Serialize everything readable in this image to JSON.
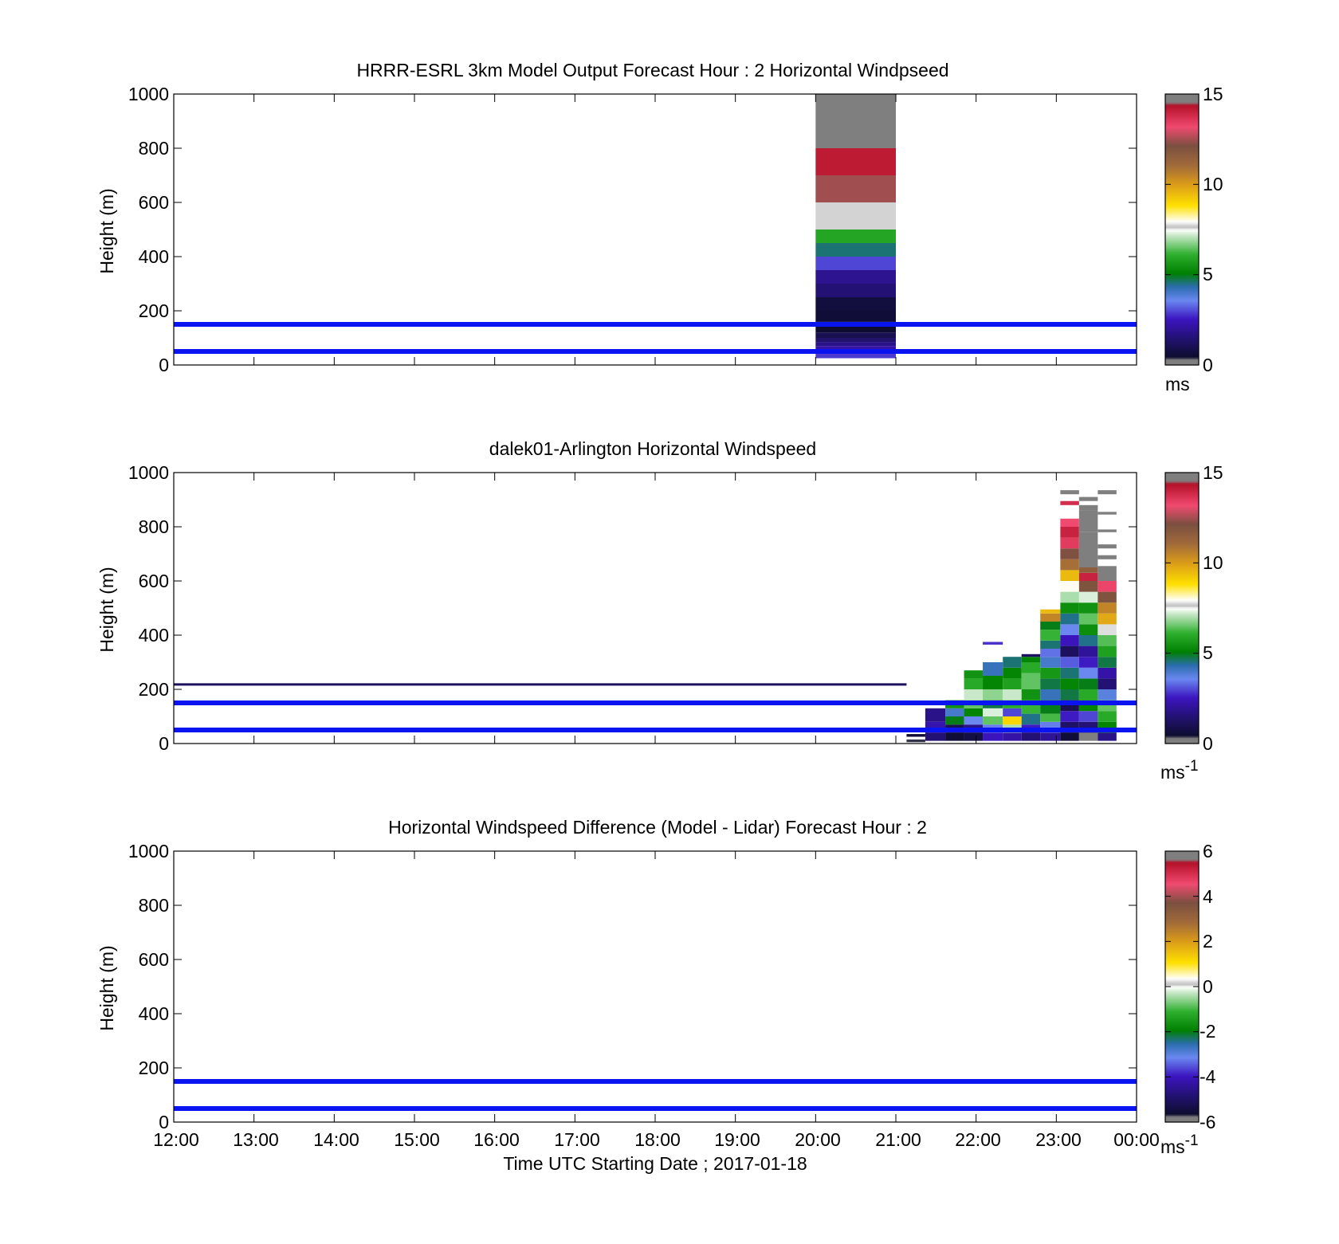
{
  "figure": {
    "xlabel": "Time UTC  Starting Date ; 2017-01-18",
    "x_ticks": [
      "12:00",
      "13:00",
      "14:00",
      "15:00",
      "16:00",
      "17:00",
      "18:00",
      "19:00",
      "20:00",
      "21:00",
      "22:00",
      "23:00",
      "00:00"
    ]
  },
  "colors": {
    "axis": "#000000",
    "reference_line": "#0a14f0",
    "colormap": [
      {
        "v": 0.0,
        "c": "#7f7f7f"
      },
      {
        "v": 0.02,
        "c": "#7f7f7f"
      },
      {
        "v": 0.03,
        "c": "#0d0d2e"
      },
      {
        "v": 0.1,
        "c": "#231273"
      },
      {
        "v": 0.17,
        "c": "#3c14c0"
      },
      {
        "v": 0.24,
        "c": "#6a88f0"
      },
      {
        "v": 0.29,
        "c": "#2a6dad"
      },
      {
        "v": 0.34,
        "c": "#008000"
      },
      {
        "v": 0.41,
        "c": "#2fb02f"
      },
      {
        "v": 0.48,
        "c": "#c9e8c9"
      },
      {
        "v": 0.5,
        "c": "#ffffff"
      },
      {
        "v": 0.51,
        "c": "#bdbdbd"
      },
      {
        "v": 0.53,
        "c": "#ffffff"
      },
      {
        "v": 0.59,
        "c": "#ffe000"
      },
      {
        "v": 0.67,
        "c": "#d99a1a"
      },
      {
        "v": 0.74,
        "c": "#a06a3a"
      },
      {
        "v": 0.81,
        "c": "#7a5040"
      },
      {
        "v": 0.88,
        "c": "#f04a70"
      },
      {
        "v": 0.96,
        "c": "#b31028"
      },
      {
        "v": 0.97,
        "c": "#7f7f7f"
      },
      {
        "v": 1.0,
        "c": "#7f7f7f"
      }
    ]
  },
  "chart_data": [
    {
      "type": "heatmap",
      "title": "HRRR-ESRL 3km Model Output   Forecast Hour : 2 Horizontal Windpseed",
      "ylabel": "Height (m)",
      "xlim": [
        "12:00",
        "00:00"
      ],
      "ylim": [
        0,
        1000
      ],
      "y_ticks": [
        "0",
        "200",
        "400",
        "600",
        "800",
        "1000"
      ],
      "colorbar": {
        "label": "ms",
        "superscript": "",
        "range": [
          0,
          15
        ],
        "ticks": [
          "0",
          "5",
          "10",
          "15"
        ]
      },
      "reference_lines_m": [
        50,
        150
      ],
      "columns": [
        {
          "t_start": "20:00",
          "t_end": "21:00",
          "cells": [
            [
              25,
              40,
              2.9
            ],
            [
              40,
              55,
              2.6
            ],
            [
              55,
              70,
              2.2
            ],
            [
              70,
              85,
              1.8
            ],
            [
              85,
              100,
              1.4
            ],
            [
              100,
              120,
              1.0
            ],
            [
              120,
              160,
              0.5
            ],
            [
              160,
              200,
              0.6
            ],
            [
              200,
              250,
              0.7
            ],
            [
              250,
              300,
              1.5
            ],
            [
              300,
              350,
              1.9
            ],
            [
              350,
              400,
              3.0
            ],
            [
              400,
              450,
              4.6
            ],
            [
              450,
              500,
              5.9
            ],
            [
              500,
              600,
              7.6
            ],
            [
              600,
              700,
              12.5
            ],
            [
              700,
              800,
              14.2
            ],
            [
              800,
              1000,
              15.5
            ]
          ]
        }
      ]
    },
    {
      "type": "heatmap",
      "title": "dalek01-Arlington  Horizontal Windspeed",
      "ylabel": "Height (m)",
      "xlim": [
        "12:00",
        "00:00"
      ],
      "ylim": [
        0,
        1000
      ],
      "y_ticks": [
        "0",
        "200",
        "400",
        "600",
        "800",
        "1000"
      ],
      "colorbar": {
        "label": "ms",
        "superscript": "-1",
        "range": [
          0,
          15
        ],
        "ticks": [
          "0",
          "5",
          "10",
          "15"
        ]
      },
      "reference_lines_m": [
        50,
        150
      ],
      "thin_segments": [
        {
          "t_start": "12:00",
          "t_end": "21:08",
          "y_m": 218,
          "value": 1.2
        }
      ],
      "columns": [
        {
          "t_start": "21:08",
          "t_end": "21:22",
          "cells": [
            [
              5,
              15,
              0.4
            ],
            [
              25,
              35,
              0.6
            ]
          ]
        },
        {
          "t_start": "21:22",
          "t_end": "21:37",
          "cells": [
            [
              10,
              40,
              1.5
            ],
            [
              40,
              80,
              2.3
            ],
            [
              80,
              130,
              1.8
            ]
          ]
        },
        {
          "t_start": "21:37",
          "t_end": "21:51",
          "cells": [
            [
              10,
              40,
              0.6
            ],
            [
              40,
              70,
              1.0
            ],
            [
              70,
              100,
              5.0
            ],
            [
              100,
              130,
              4.0
            ],
            [
              130,
              160,
              5.5
            ]
          ]
        },
        {
          "t_start": "21:51",
          "t_end": "22:05",
          "cells": [
            [
              10,
              40,
              0.8
            ],
            [
              40,
              70,
              1.8
            ],
            [
              70,
              100,
              3.6
            ],
            [
              100,
              130,
              5.2
            ],
            [
              130,
              160,
              6.5
            ],
            [
              160,
              200,
              7.2
            ],
            [
              200,
              240,
              6.0
            ],
            [
              240,
              270,
              5.5
            ]
          ]
        },
        {
          "t_start": "22:05",
          "t_end": "22:20",
          "cells": [
            [
              10,
              40,
              2.5
            ],
            [
              40,
              70,
              3.5
            ],
            [
              70,
              100,
              6.5
            ],
            [
              100,
              130,
              7.3
            ],
            [
              130,
              160,
              4.8
            ],
            [
              160,
              200,
              6.8
            ],
            [
              200,
              250,
              5.2
            ],
            [
              250,
              300,
              4.2
            ],
            [
              365,
              375,
              2.8
            ]
          ]
        },
        {
          "t_start": "22:20",
          "t_end": "22:34",
          "cells": [
            [
              10,
              40,
              2.2
            ],
            [
              40,
              70,
              7.0
            ],
            [
              70,
              100,
              9.0
            ],
            [
              100,
              130,
              3.0
            ],
            [
              130,
              160,
              6.0
            ],
            [
              160,
              200,
              7.2
            ],
            [
              200,
              240,
              5.8
            ],
            [
              240,
              280,
              5.2
            ],
            [
              280,
              320,
              4.6
            ]
          ]
        },
        {
          "t_start": "22:34",
          "t_end": "22:48",
          "cells": [
            [
              10,
              40,
              1.5
            ],
            [
              40,
              70,
              2.6
            ],
            [
              70,
              110,
              4.5
            ],
            [
              110,
              160,
              6.2
            ],
            [
              160,
              200,
              5.5
            ],
            [
              200,
              260,
              6.5
            ],
            [
              260,
              300,
              6.0
            ],
            [
              300,
              320,
              5.2
            ],
            [
              320,
              330,
              1.2
            ]
          ]
        },
        {
          "t_start": "22:48",
          "t_end": "23:03",
          "cells": [
            [
              10,
              40,
              2.0
            ],
            [
              40,
              80,
              3.5
            ],
            [
              80,
              110,
              6.3
            ],
            [
              110,
              160,
              5.0
            ],
            [
              160,
              200,
              4.2
            ],
            [
              200,
              240,
              4.8
            ],
            [
              240,
              280,
              5.6
            ],
            [
              280,
              320,
              4.0
            ],
            [
              320,
              350,
              3.4
            ],
            [
              350,
              380,
              4.6
            ],
            [
              380,
              420,
              6.2
            ],
            [
              420,
              450,
              5.0
            ],
            [
              450,
              480,
              10.5
            ],
            [
              480,
              495,
              9.5
            ]
          ]
        },
        {
          "t_start": "23:03",
          "t_end": "23:17",
          "cells": [
            [
              10,
              40,
              0.6
            ],
            [
              40,
              80,
              1.3
            ],
            [
              80,
              120,
              2.6
            ],
            [
              120,
              160,
              1.0
            ],
            [
              160,
              200,
              4.8
            ],
            [
              200,
              240,
              5.2
            ],
            [
              240,
              280,
              4.6
            ],
            [
              280,
              320,
              3.2
            ],
            [
              320,
              360,
              1.2
            ],
            [
              360,
              400,
              2.5
            ],
            [
              400,
              440,
              3.6
            ],
            [
              440,
              480,
              4.5
            ],
            [
              480,
              520,
              5.4
            ],
            [
              520,
              560,
              7.0
            ],
            [
              560,
              600,
              8.0
            ],
            [
              600,
              640,
              9.5
            ],
            [
              640,
              680,
              11.0
            ],
            [
              680,
              720,
              12.2
            ],
            [
              720,
              760,
              13.5
            ],
            [
              760,
              800,
              14.0
            ],
            [
              800,
              830,
              13.2
            ],
            [
              880,
              895,
              13.8
            ],
            [
              920,
              935,
              15.8
            ]
          ]
        },
        {
          "t_start": "23:17",
          "t_end": "23:31",
          "cells": [
            [
              10,
              40,
              15.6
            ],
            [
              40,
              80,
              1.5
            ],
            [
              80,
              120,
              3.0
            ],
            [
              120,
              160,
              5.2
            ],
            [
              160,
              200,
              6.0
            ],
            [
              200,
              240,
              5.0
            ],
            [
              240,
              280,
              3.6
            ],
            [
              280,
              320,
              2.6
            ],
            [
              320,
              360,
              2.0
            ],
            [
              360,
              400,
              4.5
            ],
            [
              400,
              440,
              5.4
            ],
            [
              440,
              480,
              6.5
            ],
            [
              480,
              520,
              5.5
            ],
            [
              520,
              560,
              7.3
            ],
            [
              560,
              600,
              12.0
            ],
            [
              600,
              630,
              14.0
            ],
            [
              630,
              650,
              11.6
            ],
            [
              650,
              700,
              15.6
            ],
            [
              700,
              780,
              15.5
            ],
            [
              780,
              860,
              15.5
            ],
            [
              860,
              880,
              15.5
            ],
            [
              895,
              910,
              15.5
            ]
          ]
        },
        {
          "t_start": "23:31",
          "t_end": "23:45",
          "cells": [
            [
              10,
              40,
              1.8
            ],
            [
              40,
              80,
              5.2
            ],
            [
              80,
              120,
              6.0
            ],
            [
              120,
              160,
              6.5
            ],
            [
              160,
              200,
              3.8
            ],
            [
              200,
              240,
              1.5
            ],
            [
              240,
              280,
              2.2
            ],
            [
              280,
              320,
              4.8
            ],
            [
              320,
              360,
              5.8
            ],
            [
              360,
              400,
              6.4
            ],
            [
              400,
              440,
              7.8
            ],
            [
              440,
              480,
              9.8
            ],
            [
              480,
              520,
              10.5
            ],
            [
              520,
              560,
              12.0
            ],
            [
              560,
              600,
              13.3
            ],
            [
              600,
              655,
              14.6
            ],
            [
              680,
              695,
              15.5
            ],
            [
              720,
              735,
              15.5
            ],
            [
              780,
              790,
              15.5
            ],
            [
              845,
              855,
              15.5
            ],
            [
              920,
              935,
              15.5
            ]
          ]
        }
      ]
    },
    {
      "type": "heatmap",
      "title": "Horizontal Windspeed Difference (Model - Lidar) Forecast Hour : 2",
      "ylabel": "Height (m)",
      "xlim": [
        "12:00",
        "00:00"
      ],
      "ylim": [
        0,
        1000
      ],
      "y_ticks": [
        "0",
        "200",
        "400",
        "600",
        "800",
        "1000"
      ],
      "colorbar": {
        "label": "ms",
        "superscript": "-1",
        "range": [
          -6,
          6
        ],
        "ticks": [
          "-6",
          "-4",
          "-2",
          "0",
          "2",
          "4",
          "6"
        ]
      },
      "reference_lines_m": [
        50,
        150
      ],
      "columns": []
    }
  ]
}
